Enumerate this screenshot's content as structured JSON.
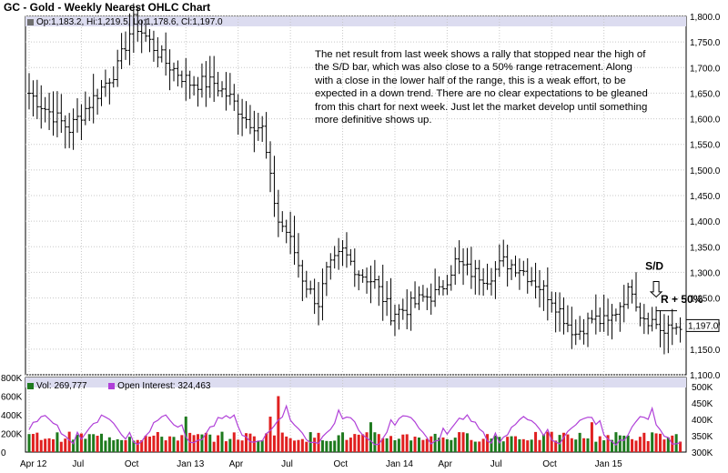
{
  "chart_data": {
    "title": "GC - Gold - Weekly Nearest OHLC Chart",
    "ohlc_info": "Op:1,183.2, Hi:1,219.5, Lo:1,178.6, Cl:1,197.0",
    "last_value_label": "1,197.0",
    "annotation": "The net result from last week shows a rally that stopped near the high of the S/D bar, which was also close to a 50% range retracement.  Along with a close in the lower half of the range, this is a weak effort, to be expected in a down trend.  There are no clear expectations to be gleaned from this chart for next week.  Just let the market develop until something more definitive shows up.",
    "sd_label": "S/D",
    "retrace_label": "R + 50%",
    "price_axis": {
      "min": 1100,
      "max": 1800,
      "ticks": [
        "1,100.0",
        "1,150.0",
        "1,200.0",
        "1,250.0",
        "1,300.0",
        "1,350.0",
        "1,400.0",
        "1,450.0",
        "1,500.0",
        "1,550.0",
        "1,600.0",
        "1,650.0",
        "1,700.0",
        "1,750.0",
        "1,800.0"
      ]
    },
    "x_axis": {
      "ticks": [
        "Apr 12",
        "Jul",
        "Oct",
        "Jan 13",
        "Apr",
        "Jul",
        "Oct",
        "Jan 14",
        "Apr",
        "Jul",
        "Oct",
        "Jan 15"
      ]
    },
    "price_series": {
      "type": "ohlc",
      "anchors": [
        [
          0,
          1650
        ],
        [
          4,
          1620
        ],
        [
          10,
          1580
        ],
        [
          16,
          1640
        ],
        [
          22,
          1700
        ],
        [
          26,
          1790
        ],
        [
          30,
          1750
        ],
        [
          34,
          1710
        ],
        [
          40,
          1670
        ],
        [
          46,
          1670
        ],
        [
          50,
          1640
        ],
        [
          54,
          1600
        ],
        [
          58,
          1580
        ],
        [
          60,
          1480
        ],
        [
          62,
          1400
        ],
        [
          64,
          1380
        ],
        [
          66,
          1340
        ],
        [
          68,
          1290
        ],
        [
          70,
          1260
        ],
        [
          72,
          1240
        ],
        [
          74,
          1300
        ],
        [
          78,
          1340
        ],
        [
          82,
          1300
        ],
        [
          86,
          1280
        ],
        [
          90,
          1220
        ],
        [
          94,
          1230
        ],
        [
          98,
          1250
        ],
        [
          102,
          1260
        ],
        [
          106,
          1320
        ],
        [
          110,
          1300
        ],
        [
          114,
          1290
        ],
        [
          118,
          1320
        ],
        [
          122,
          1310
        ],
        [
          126,
          1280
        ],
        [
          130,
          1250
        ],
        [
          134,
          1200
        ],
        [
          136,
          1180
        ],
        [
          140,
          1210
        ],
        [
          144,
          1200
        ],
        [
          148,
          1250
        ],
        [
          150,
          1270
        ],
        [
          152,
          1220
        ],
        [
          156,
          1200
        ],
        [
          158,
          1180
        ],
        [
          160,
          1190
        ],
        [
          162,
          1200
        ]
      ]
    },
    "volume_legend": {
      "label": "Vol: 269,777",
      "color": "#1e7a1e"
    },
    "oi_legend": {
      "label": "Open Interest: 324,463",
      "color": "#b040d8"
    },
    "volume_axis": {
      "min": 0,
      "max": 800000,
      "ticks": [
        "0",
        "200K",
        "400K",
        "600K",
        "800K"
      ]
    },
    "oi_axis": {
      "min": 300000,
      "max": 500000,
      "ticks": [
        "300K",
        "350K",
        "400K",
        "450K",
        "500K"
      ]
    },
    "colors": {
      "up_volume": "#1e7a1e",
      "down_volume": "#e02020",
      "oi_line": "#b040d8",
      "bars": "#000000",
      "grid": "#b0b0b0"
    }
  }
}
